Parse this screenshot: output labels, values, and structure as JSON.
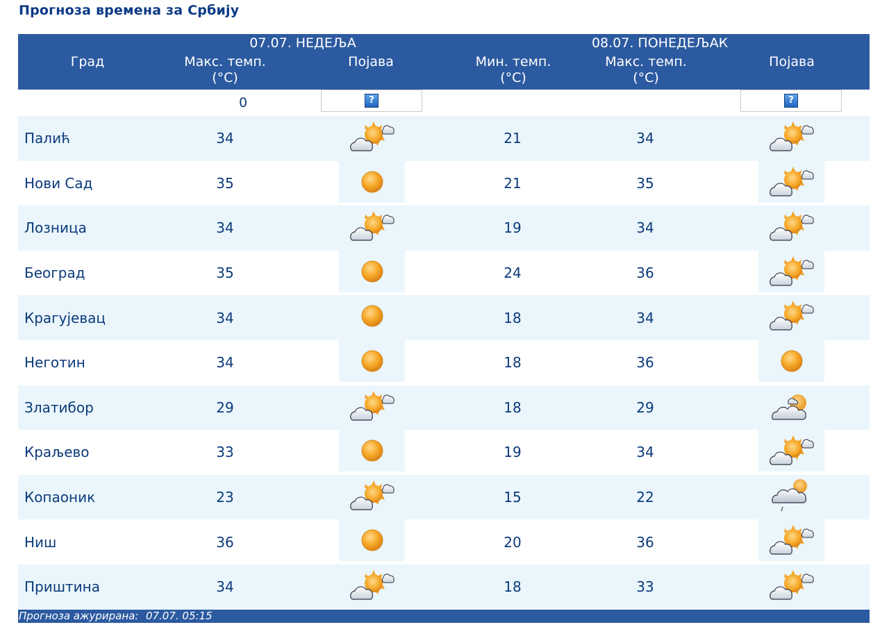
{
  "title": "Прогноза времена за Србију",
  "header": {
    "day1": "07.07. НЕДЕЉА",
    "day2": "08.07. ПОНЕДЕЉАК",
    "city": "Град",
    "max_temp": "Макс. темп.",
    "min_temp": "Мин. темп.",
    "unit": "(°C)",
    "phenomenon": "Појава"
  },
  "zero_row": {
    "value": "0",
    "help_label": "?"
  },
  "rows": [
    {
      "city": "Палић",
      "d1_max": "34",
      "d1_icon": "partly-cloudy-icon",
      "d2_min": "21",
      "d2_max": "34",
      "d2_icon": "partly-cloudy-icon"
    },
    {
      "city": "Нови Сад",
      "d1_max": "35",
      "d1_icon": "sunny-icon",
      "d2_min": "21",
      "d2_max": "35",
      "d2_icon": "partly-cloudy-icon"
    },
    {
      "city": "Лозница",
      "d1_max": "34",
      "d1_icon": "partly-cloudy-icon",
      "d2_min": "19",
      "d2_max": "34",
      "d2_icon": "partly-cloudy-icon"
    },
    {
      "city": "Београд",
      "d1_max": "35",
      "d1_icon": "sunny-icon",
      "d2_min": "24",
      "d2_max": "36",
      "d2_icon": "partly-cloudy-icon"
    },
    {
      "city": "Крагујевац",
      "d1_max": "34",
      "d1_icon": "sunny-icon",
      "d2_min": "18",
      "d2_max": "34",
      "d2_icon": "partly-cloudy-icon"
    },
    {
      "city": "Неготин",
      "d1_max": "34",
      "d1_icon": "sunny-icon",
      "d2_min": "18",
      "d2_max": "36",
      "d2_icon": "sunny-icon"
    },
    {
      "city": "Златибор",
      "d1_max": "29",
      "d1_icon": "partly-cloudy-icon",
      "d2_min": "18",
      "d2_max": "29",
      "d2_icon": "mostly-cloudy-icon"
    },
    {
      "city": "Краљево",
      "d1_max": "33",
      "d1_icon": "sunny-icon",
      "d2_min": "19",
      "d2_max": "34",
      "d2_icon": "partly-cloudy-icon"
    },
    {
      "city": "Копаоник",
      "d1_max": "23",
      "d1_icon": "partly-cloudy-icon",
      "d2_min": "15",
      "d2_max": "22",
      "d2_icon": "cloudy-showers-icon"
    },
    {
      "city": "Ниш",
      "d1_max": "36",
      "d1_icon": "sunny-icon",
      "d2_min": "20",
      "d2_max": "36",
      "d2_icon": "partly-cloudy-icon"
    },
    {
      "city": "Приштина",
      "d1_max": "34",
      "d1_icon": "partly-cloudy-icon",
      "d2_min": "18",
      "d2_max": "33",
      "d2_icon": "partly-cloudy-icon"
    }
  ],
  "footer": {
    "label": "Прогноза ажурирана:",
    "timestamp": "07.07. 05:15"
  },
  "colors": {
    "header_bg": "#2c5aa0",
    "row_alt": "#eaf6fb",
    "text": "#0b3a7a"
  }
}
